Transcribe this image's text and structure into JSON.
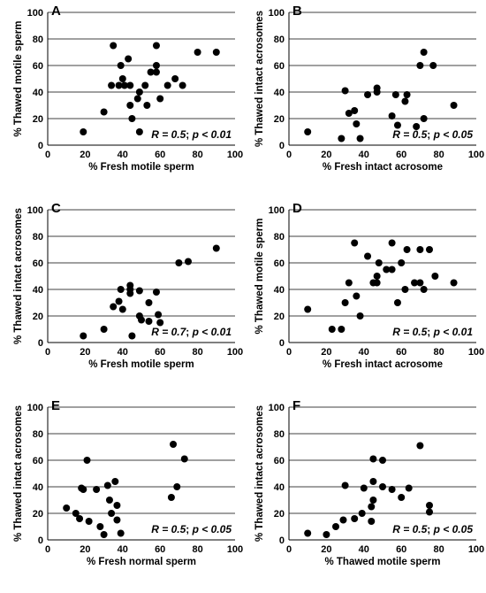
{
  "chart_data": [
    {
      "type": "scatter",
      "panel": "A",
      "xlabel": "% Fresh motile sperm",
      "ylabel": "% Thawed motile sperm",
      "xlim": [
        0,
        100
      ],
      "ylim": [
        0,
        100
      ],
      "xticks": [
        "0",
        "20",
        "40",
        "60",
        "80",
        "100"
      ],
      "yticks": [
        "0",
        "20",
        "40",
        "60",
        "80",
        "100"
      ],
      "grid": "horizontal",
      "stats": {
        "r": "R = 0.5",
        "sep": "; ",
        "p": "p < 0.01"
      },
      "points": [
        {
          "x": 19,
          "y": 10
        },
        {
          "x": 30,
          "y": 25
        },
        {
          "x": 34,
          "y": 45
        },
        {
          "x": 35,
          "y": 75
        },
        {
          "x": 38,
          "y": 45
        },
        {
          "x": 39,
          "y": 60
        },
        {
          "x": 40,
          "y": 50
        },
        {
          "x": 41,
          "y": 45
        },
        {
          "x": 43,
          "y": 65
        },
        {
          "x": 44,
          "y": 45
        },
        {
          "x": 44,
          "y": 30
        },
        {
          "x": 45,
          "y": 20
        },
        {
          "x": 48,
          "y": 35
        },
        {
          "x": 49,
          "y": 40
        },
        {
          "x": 49,
          "y": 10
        },
        {
          "x": 52,
          "y": 45
        },
        {
          "x": 53,
          "y": 30
        },
        {
          "x": 55,
          "y": 55
        },
        {
          "x": 58,
          "y": 60
        },
        {
          "x": 58,
          "y": 75
        },
        {
          "x": 58,
          "y": 55
        },
        {
          "x": 60,
          "y": 35
        },
        {
          "x": 64,
          "y": 45
        },
        {
          "x": 68,
          "y": 50
        },
        {
          "x": 72,
          "y": 45
        },
        {
          "x": 80,
          "y": 70
        },
        {
          "x": 90,
          "y": 70
        }
      ]
    },
    {
      "type": "scatter",
      "panel": "B",
      "xlabel": "% Fresh intact acrosome",
      "ylabel": "% Thawed intact acrosomes",
      "xlim": [
        0,
        100
      ],
      "ylim": [
        0,
        100
      ],
      "xticks": [
        "0",
        "20",
        "40",
        "60",
        "80",
        "100"
      ],
      "yticks": [
        "0",
        "20",
        "40",
        "60",
        "80",
        "100"
      ],
      "grid": "horizontal",
      "stats": {
        "r": "R = 0.5",
        "sep": "; ",
        "p": "p < 0.05"
      },
      "points": [
        {
          "x": 10,
          "y": 10
        },
        {
          "x": 28,
          "y": 5
        },
        {
          "x": 30,
          "y": 41
        },
        {
          "x": 32,
          "y": 24
        },
        {
          "x": 35,
          "y": 26
        },
        {
          "x": 36,
          "y": 16
        },
        {
          "x": 38,
          "y": 5
        },
        {
          "x": 42,
          "y": 38
        },
        {
          "x": 47,
          "y": 40
        },
        {
          "x": 47,
          "y": 43
        },
        {
          "x": 55,
          "y": 22
        },
        {
          "x": 57,
          "y": 38
        },
        {
          "x": 58,
          "y": 15
        },
        {
          "x": 62,
          "y": 33
        },
        {
          "x": 63,
          "y": 38
        },
        {
          "x": 68,
          "y": 14
        },
        {
          "x": 70,
          "y": 60
        },
        {
          "x": 72,
          "y": 20
        },
        {
          "x": 72,
          "y": 70
        },
        {
          "x": 77,
          "y": 60
        },
        {
          "x": 88,
          "y": 30
        }
      ]
    },
    {
      "type": "scatter",
      "panel": "C",
      "xlabel": "% Fresh motile sperm",
      "ylabel": "% Thawed intact acrosomes",
      "xlim": [
        0,
        100
      ],
      "ylim": [
        0,
        100
      ],
      "xticks": [
        "0",
        "20",
        "40",
        "60",
        "80",
        "100"
      ],
      "yticks": [
        "0",
        "20",
        "40",
        "60",
        "80",
        "100"
      ],
      "grid": "horizontal",
      "stats": {
        "r": "R = 0.7",
        "sep": "; ",
        "p": "p < 0.01"
      },
      "points": [
        {
          "x": 19,
          "y": 5
        },
        {
          "x": 30,
          "y": 10
        },
        {
          "x": 35,
          "y": 27
        },
        {
          "x": 38,
          "y": 31
        },
        {
          "x": 39,
          "y": 40
        },
        {
          "x": 40,
          "y": 25
        },
        {
          "x": 44,
          "y": 37
        },
        {
          "x": 44,
          "y": 40
        },
        {
          "x": 44,
          "y": 43
        },
        {
          "x": 45,
          "y": 5
        },
        {
          "x": 49,
          "y": 39
        },
        {
          "x": 49,
          "y": 20
        },
        {
          "x": 50,
          "y": 17
        },
        {
          "x": 54,
          "y": 16
        },
        {
          "x": 54,
          "y": 30
        },
        {
          "x": 58,
          "y": 38
        },
        {
          "x": 59,
          "y": 21
        },
        {
          "x": 60,
          "y": 15
        },
        {
          "x": 70,
          "y": 60
        },
        {
          "x": 75,
          "y": 61
        },
        {
          "x": 90,
          "y": 71
        }
      ]
    },
    {
      "type": "scatter",
      "panel": "D",
      "xlabel": "% Fresh intact acrosome",
      "ylabel": "% Thawed motile sperm",
      "xlim": [
        0,
        100
      ],
      "ylim": [
        0,
        100
      ],
      "xticks": [
        "0",
        "20",
        "40",
        "60",
        "80",
        "100"
      ],
      "yticks": [
        "0",
        "20",
        "40",
        "60",
        "80",
        "100"
      ],
      "grid": "horizontal",
      "stats": {
        "r": "R = 0.5",
        "sep": "; ",
        "p": "p < 0.01"
      },
      "points": [
        {
          "x": 10,
          "y": 25
        },
        {
          "x": 23,
          "y": 10
        },
        {
          "x": 28,
          "y": 10
        },
        {
          "x": 30,
          "y": 30
        },
        {
          "x": 32,
          "y": 45
        },
        {
          "x": 35,
          "y": 75
        },
        {
          "x": 36,
          "y": 35
        },
        {
          "x": 38,
          "y": 20
        },
        {
          "x": 42,
          "y": 65
        },
        {
          "x": 45,
          "y": 45
        },
        {
          "x": 47,
          "y": 45
        },
        {
          "x": 47,
          "y": 50
        },
        {
          "x": 48,
          "y": 60
        },
        {
          "x": 52,
          "y": 55
        },
        {
          "x": 55,
          "y": 55
        },
        {
          "x": 55,
          "y": 75
        },
        {
          "x": 58,
          "y": 30
        },
        {
          "x": 60,
          "y": 60
        },
        {
          "x": 62,
          "y": 40
        },
        {
          "x": 63,
          "y": 70
        },
        {
          "x": 67,
          "y": 45
        },
        {
          "x": 70,
          "y": 70
        },
        {
          "x": 70,
          "y": 45
        },
        {
          "x": 72,
          "y": 40
        },
        {
          "x": 75,
          "y": 70
        },
        {
          "x": 78,
          "y": 50
        },
        {
          "x": 88,
          "y": 45
        }
      ]
    },
    {
      "type": "scatter",
      "panel": "E",
      "xlabel": "% Fresh normal sperm",
      "ylabel": "% Thawed intact acrosomes",
      "xlim": [
        0,
        100
      ],
      "ylim": [
        0,
        100
      ],
      "xticks": [
        "0",
        "20",
        "40",
        "60",
        "80",
        "100"
      ],
      "yticks": [
        "0",
        "20",
        "40",
        "60",
        "80",
        "100"
      ],
      "grid": "horizontal",
      "stats": {
        "r": "R = 0.5",
        "sep": "; ",
        "p": "p < 0.05"
      },
      "points": [
        {
          "x": 10,
          "y": 24
        },
        {
          "x": 15,
          "y": 20
        },
        {
          "x": 17,
          "y": 16
        },
        {
          "x": 18,
          "y": 39
        },
        {
          "x": 19,
          "y": 38
        },
        {
          "x": 21,
          "y": 60
        },
        {
          "x": 22,
          "y": 14
        },
        {
          "x": 26,
          "y": 38
        },
        {
          "x": 28,
          "y": 10
        },
        {
          "x": 30,
          "y": 4
        },
        {
          "x": 32,
          "y": 41
        },
        {
          "x": 33,
          "y": 30
        },
        {
          "x": 34,
          "y": 20
        },
        {
          "x": 36,
          "y": 44
        },
        {
          "x": 37,
          "y": 26
        },
        {
          "x": 37,
          "y": 15
        },
        {
          "x": 39,
          "y": 5
        },
        {
          "x": 66,
          "y": 32
        },
        {
          "x": 67,
          "y": 72
        },
        {
          "x": 69,
          "y": 40
        },
        {
          "x": 73,
          "y": 61
        }
      ]
    },
    {
      "type": "scatter",
      "panel": "F",
      "xlabel": "% Thawed motile sperm",
      "ylabel": "% Thawed intact acrosomes",
      "xlim": [
        0,
        100
      ],
      "ylim": [
        0,
        100
      ],
      "xticks": [
        "0",
        "20",
        "40",
        "60",
        "80",
        "100"
      ],
      "yticks": [
        "0",
        "20",
        "40",
        "60",
        "80",
        "100"
      ],
      "grid": "horizontal",
      "stats": {
        "r": "R = 0.5",
        "sep": "; ",
        "p": "p < 0.05"
      },
      "points": [
        {
          "x": 10,
          "y": 5
        },
        {
          "x": 20,
          "y": 4
        },
        {
          "x": 25,
          "y": 10
        },
        {
          "x": 29,
          "y": 15
        },
        {
          "x": 30,
          "y": 41
        },
        {
          "x": 35,
          "y": 16
        },
        {
          "x": 39,
          "y": 20
        },
        {
          "x": 40,
          "y": 39
        },
        {
          "x": 44,
          "y": 14
        },
        {
          "x": 44,
          "y": 25
        },
        {
          "x": 45,
          "y": 30
        },
        {
          "x": 45,
          "y": 61
        },
        {
          "x": 45,
          "y": 44
        },
        {
          "x": 50,
          "y": 60
        },
        {
          "x": 50,
          "y": 40
        },
        {
          "x": 55,
          "y": 38
        },
        {
          "x": 60,
          "y": 32
        },
        {
          "x": 64,
          "y": 39
        },
        {
          "x": 70,
          "y": 71
        },
        {
          "x": 75,
          "y": 26
        },
        {
          "x": 75,
          "y": 21
        }
      ]
    }
  ]
}
